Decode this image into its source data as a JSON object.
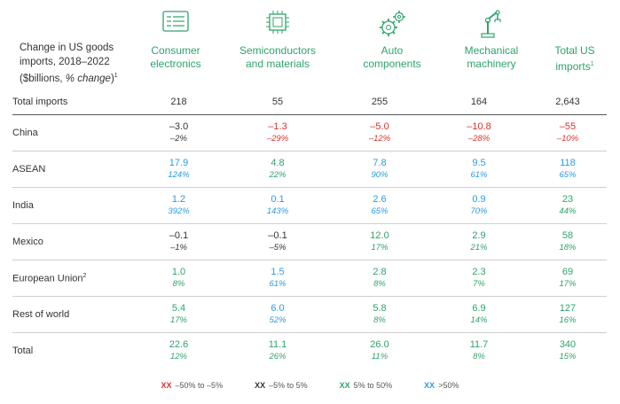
{
  "title": {
    "line1": "Change in US goods",
    "line2": "imports, 2018–2022",
    "line3_prefix": "($billions, ",
    "line3_italic": "% change",
    "line3_suffix": ")",
    "sup": "1"
  },
  "colors": {
    "red": "#d9312b",
    "black": "#333333",
    "green": "#2fa36b",
    "blue": "#2b9be0"
  },
  "chart_data": {
    "type": "table",
    "title": "Change in US goods imports, 2018–2022 ($billions, % change)",
    "columns": [
      {
        "line1": "Consumer",
        "line2": "electronics",
        "sup": "",
        "icon": "monitor-icon"
      },
      {
        "line1": "Semiconductors",
        "line2": "and materials",
        "sup": "",
        "icon": "chip-icon"
      },
      {
        "line1": "Auto",
        "line2": "components",
        "sup": "",
        "icon": "gears-icon"
      },
      {
        "line1": "Mechanical",
        "line2": "machinery",
        "sup": "",
        "icon": "robot-arm-icon"
      },
      {
        "line1": "Total US",
        "line2": "imports",
        "sup": "1",
        "icon": ""
      }
    ],
    "total_imports": {
      "label": "Total imports",
      "values": [
        "218",
        "55",
        "255",
        "164",
        "2,643"
      ]
    },
    "rows": [
      {
        "label": "China",
        "sup": "",
        "cells": [
          {
            "value": "–3.0",
            "pct": "–2%",
            "cat": "black"
          },
          {
            "value": "–1.3",
            "pct": "–29%",
            "cat": "red"
          },
          {
            "value": "–5.0",
            "pct": "–12%",
            "cat": "red"
          },
          {
            "value": "–10.8",
            "pct": "–28%",
            "cat": "red"
          },
          {
            "value": "–55",
            "pct": "–10%",
            "cat": "red"
          }
        ]
      },
      {
        "label": "ASEAN",
        "sup": "",
        "cells": [
          {
            "value": "17.9",
            "pct": "124%",
            "cat": "blue"
          },
          {
            "value": "4.8",
            "pct": "22%",
            "cat": "green"
          },
          {
            "value": "7.8",
            "pct": "90%",
            "cat": "blue"
          },
          {
            "value": "9.5",
            "pct": "61%",
            "cat": "blue"
          },
          {
            "value": "118",
            "pct": "65%",
            "cat": "blue"
          }
        ]
      },
      {
        "label": "India",
        "sup": "",
        "cells": [
          {
            "value": "1.2",
            "pct": "392%",
            "cat": "blue"
          },
          {
            "value": "0.1",
            "pct": "143%",
            "cat": "blue"
          },
          {
            "value": "2.6",
            "pct": "65%",
            "cat": "blue"
          },
          {
            "value": "0.9",
            "pct": "70%",
            "cat": "blue"
          },
          {
            "value": "23",
            "pct": "44%",
            "cat": "green"
          }
        ]
      },
      {
        "label": "Mexico",
        "sup": "",
        "cells": [
          {
            "value": "–0.1",
            "pct": "–1%",
            "cat": "black"
          },
          {
            "value": "–0.1",
            "pct": "–5%",
            "cat": "black"
          },
          {
            "value": "12.0",
            "pct": "17%",
            "cat": "green"
          },
          {
            "value": "2.9",
            "pct": "21%",
            "cat": "green"
          },
          {
            "value": "58",
            "pct": "18%",
            "cat": "green"
          }
        ]
      },
      {
        "label": "European Union",
        "sup": "2",
        "cells": [
          {
            "value": "1.0",
            "pct": "8%",
            "cat": "green"
          },
          {
            "value": "1.5",
            "pct": "61%",
            "cat": "blue"
          },
          {
            "value": "2.8",
            "pct": "8%",
            "cat": "green"
          },
          {
            "value": "2.3",
            "pct": "7%",
            "cat": "green"
          },
          {
            "value": "69",
            "pct": "17%",
            "cat": "green"
          }
        ]
      },
      {
        "label": "Rest of world",
        "sup": "",
        "cells": [
          {
            "value": "5.4",
            "pct": "17%",
            "cat": "green"
          },
          {
            "value": "6.0",
            "pct": "52%",
            "cat": "blue"
          },
          {
            "value": "5.8",
            "pct": "8%",
            "cat": "green"
          },
          {
            "value": "6.9",
            "pct": "14%",
            "cat": "green"
          },
          {
            "value": "127",
            "pct": "16%",
            "cat": "green"
          }
        ]
      }
    ],
    "total": {
      "label": "Total",
      "cells": [
        {
          "value": "22.6",
          "pct": "12%",
          "cat": "green"
        },
        {
          "value": "11.1",
          "pct": "26%",
          "cat": "green"
        },
        {
          "value": "26.0",
          "pct": "11%",
          "cat": "green"
        },
        {
          "value": "11.7",
          "pct": "8%",
          "cat": "green"
        },
        {
          "value": "340",
          "pct": "15%",
          "cat": "green"
        }
      ]
    },
    "legend": [
      {
        "swatch": "XX",
        "cat": "red",
        "label": "–50% to –5%"
      },
      {
        "swatch": "XX",
        "cat": "black",
        "label": "–5% to 5%"
      },
      {
        "swatch": "XX",
        "cat": "green",
        "label": "5% to 50%"
      },
      {
        "swatch": "XX",
        "cat": "blue",
        "label": ">50%"
      }
    ]
  }
}
